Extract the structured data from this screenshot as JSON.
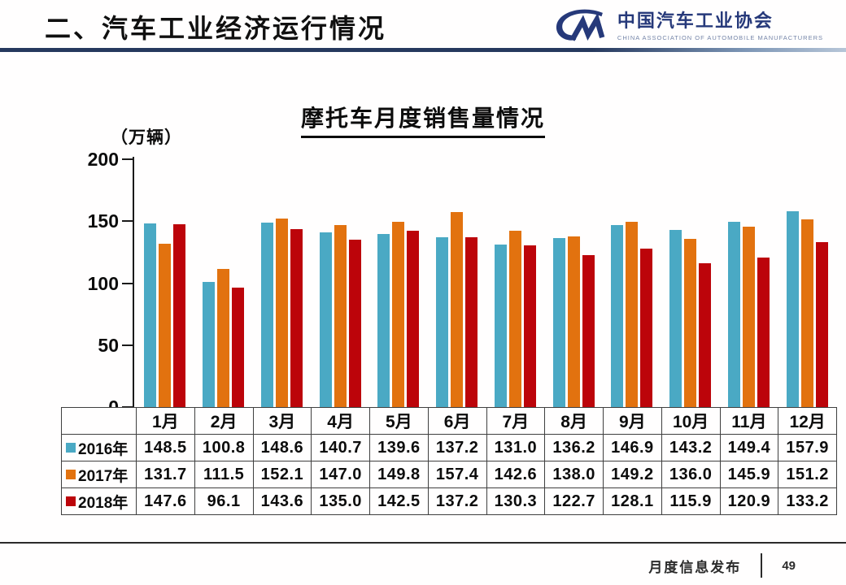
{
  "header": {
    "title": "二、汽车工业经济运行情况"
  },
  "logo": {
    "mark": "CM",
    "name": "中国汽车工业协会",
    "subtitle": "CHINA ASSOCIATION OF AUTOMOBILE MANUFACTURERS",
    "color": "#26397a"
  },
  "chart_data": {
    "type": "bar",
    "title": "摩托车月度销售量情况",
    "unit_label": "（万辆）",
    "categories": [
      "1月",
      "2月",
      "3月",
      "4月",
      "5月",
      "6月",
      "7月",
      "8月",
      "9月",
      "10月",
      "11月",
      "12月"
    ],
    "series": [
      {
        "name": "2016年",
        "color": "#4aa9c4",
        "values": [
          148.5,
          100.8,
          148.6,
          140.7,
          139.6,
          137.2,
          131.0,
          136.2,
          146.9,
          143.2,
          149.4,
          157.9
        ]
      },
      {
        "name": "2017年",
        "color": "#e2720f",
        "values": [
          131.7,
          111.5,
          152.1,
          147.0,
          149.8,
          157.4,
          142.6,
          138.0,
          149.2,
          136.0,
          145.9,
          151.2
        ]
      },
      {
        "name": "2018年",
        "color": "#bc040a",
        "values": [
          147.6,
          96.1,
          143.6,
          135.0,
          142.5,
          137.2,
          130.3,
          122.7,
          128.1,
          115.9,
          120.9,
          133.2
        ]
      }
    ],
    "ylim": [
      0,
      200
    ],
    "yticks": [
      0,
      50,
      100,
      150,
      200
    ],
    "grid": false,
    "legend_position": "table-left"
  },
  "footer": {
    "label": "月度信息发布",
    "page": "49"
  }
}
